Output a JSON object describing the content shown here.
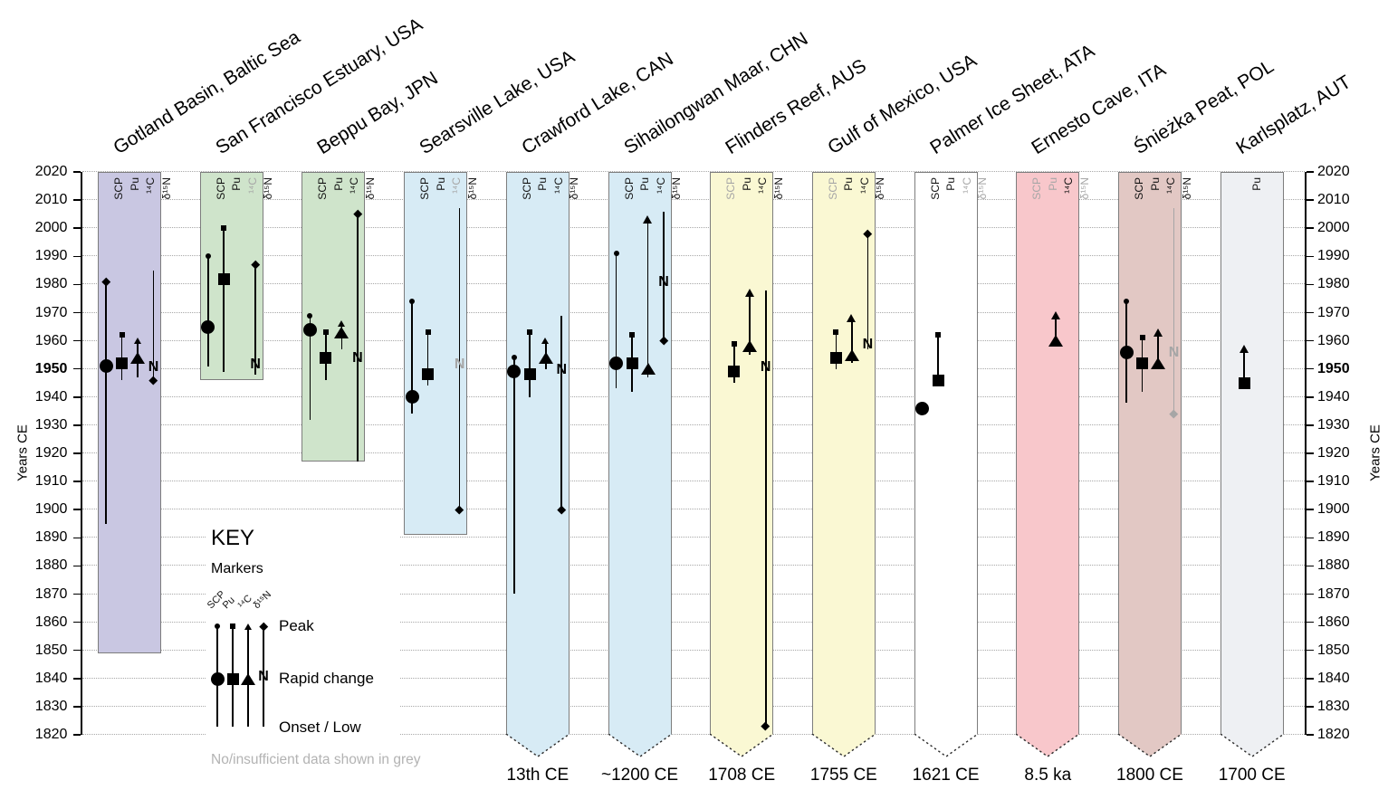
{
  "axis": {
    "left_label": "Years CE",
    "right_label": "Years CE",
    "year_top": 2020,
    "year_bottom": 1820,
    "tick_step": 10,
    "bold_year": 1950
  },
  "key": {
    "title": "KEY",
    "subtitle": "Markers",
    "proxies": [
      "SCP",
      "Pu",
      "¹⁴C",
      "δ¹⁵N"
    ],
    "peak_label": "Peak",
    "rapid_label": "Rapid change",
    "onset_label": "Onset / Low",
    "note": "No/insufficient data shown in grey"
  },
  "colors": {
    "lavender": "#c9c7e2",
    "green": "#cfe4cb",
    "blue": "#d7ebf5",
    "yellow": "#faf8d3",
    "white": "#ffffff",
    "pink": "#f8c7cb",
    "rose": "#e2c8c4",
    "lightgrey": "#eef0f3",
    "grey_data": "#a6a6a6",
    "band_border": "#7d7d7d",
    "gridline": "#a8a8a8"
  },
  "chart_data": {
    "type": "marker-timeline",
    "ylabel": "Years CE",
    "ylim": [
      1820,
      2020
    ],
    "grid": "dotted horizontal every 10 years",
    "proxy_order": [
      "SCP",
      "Pu",
      "¹⁴C",
      "δ¹⁵N"
    ],
    "marker_semantics": {
      "small": "Peak",
      "large": "Rapid change",
      "line_end": "Onset / Low",
      "grey": "No/insufficient data"
    },
    "sites": [
      {
        "name": "Gotland Basin, Baltic Sea",
        "color_key": "lavender",
        "pointed": false,
        "band_top": 2020,
        "band_bottom": 1849,
        "footer": null,
        "lanes": [
          {
            "label": "SCP",
            "label_grey": false,
            "line": [
              1981,
              1895
            ],
            "peak": {
              "year": 1981,
              "shape": "diamond"
            },
            "rapid": {
              "year": 1951,
              "shape": "circle"
            }
          },
          {
            "label": "Pu",
            "label_grey": false,
            "line": [
              1962,
              1946
            ],
            "peak": {
              "year": 1962,
              "shape": "square"
            },
            "rapid": {
              "year": 1952,
              "shape": "square"
            }
          },
          {
            "label": "¹⁴C",
            "label_grey": false,
            "line": [
              1960,
              1947
            ],
            "peak": {
              "year": 1960,
              "shape": "triangle"
            },
            "rapid": {
              "year": 1954,
              "shape": "triangle"
            }
          },
          {
            "label": "δ¹⁵N",
            "label_grey": false,
            "line": [
              1985,
              1946
            ],
            "peak": {
              "year": 1946,
              "shape": "diamond"
            },
            "rapid": {
              "year": 1950,
              "shape": "N"
            }
          }
        ]
      },
      {
        "name": "San Francisco Estuary, USA",
        "color_key": "green",
        "pointed": false,
        "band_top": 2020,
        "band_bottom": 1946,
        "footer": null,
        "lanes": [
          {
            "label": "SCP",
            "label_grey": false,
            "line": [
              1990,
              1951
            ],
            "peak": {
              "year": 1990,
              "shape": "circle"
            },
            "rapid": {
              "year": 1965,
              "shape": "circle"
            }
          },
          {
            "label": "Pu",
            "label_grey": false,
            "line": [
              2000,
              1949
            ],
            "peak": {
              "year": 2000,
              "shape": "square"
            },
            "rapid": {
              "year": 1982,
              "shape": "square"
            }
          },
          {
            "label": "¹⁴C",
            "label_grey": true,
            "line": null,
            "peak": null,
            "rapid": null
          },
          {
            "label": "δ¹⁵N",
            "label_grey": false,
            "line": [
              1987,
              1948
            ],
            "peak": {
              "year": 1987,
              "shape": "diamond"
            },
            "rapid": {
              "year": 1951,
              "shape": "N"
            }
          }
        ]
      },
      {
        "name": "Beppu Bay, JPN",
        "color_key": "green",
        "pointed": false,
        "band_top": 2020,
        "band_bottom": 1917,
        "footer": null,
        "lanes": [
          {
            "label": "SCP",
            "label_grey": false,
            "line": [
              1969,
              1932
            ],
            "peak": {
              "year": 1969,
              "shape": "circle"
            },
            "rapid": {
              "year": 1964,
              "shape": "circle"
            }
          },
          {
            "label": "Pu",
            "label_grey": false,
            "line": [
              1963,
              1946
            ],
            "peak": {
              "year": 1963,
              "shape": "square"
            },
            "rapid": {
              "year": 1954,
              "shape": "square"
            }
          },
          {
            "label": "¹⁴C",
            "label_grey": false,
            "line": [
              1966,
              1957
            ],
            "peak": {
              "year": 1966,
              "shape": "triangle"
            },
            "rapid": {
              "year": 1963,
              "shape": "triangle"
            }
          },
          {
            "label": "δ¹⁵N",
            "label_grey": false,
            "line": [
              2005,
              1917
            ],
            "peak": {
              "year": 2005,
              "shape": "diamond"
            },
            "rapid": {
              "year": 1953,
              "shape": "N"
            }
          }
        ]
      },
      {
        "name": "Searsville Lake, USA",
        "color_key": "blue",
        "pointed": false,
        "band_top": 2020,
        "band_bottom": 1891,
        "footer": null,
        "lanes": [
          {
            "label": "SCP",
            "label_grey": false,
            "line": [
              1974,
              1934
            ],
            "peak": {
              "year": 1974,
              "shape": "circle"
            },
            "rapid": {
              "year": 1940,
              "shape": "circle"
            }
          },
          {
            "label": "Pu",
            "label_grey": false,
            "line": [
              1963,
              1944
            ],
            "peak": {
              "year": 1963,
              "shape": "square"
            },
            "rapid": {
              "year": 1948,
              "shape": "square"
            }
          },
          {
            "label": "¹⁴C",
            "label_grey": true,
            "line": null,
            "peak": null,
            "rapid": null
          },
          {
            "label": "δ¹⁵N",
            "label_grey": false,
            "line": [
              2007,
              1900
            ],
            "peak": {
              "year": 1900,
              "shape": "diamond"
            },
            "rapid": {
              "year": 1951,
              "shape": "N",
              "grey": true
            }
          }
        ]
      },
      {
        "name": "Crawford Lake, CAN",
        "color_key": "blue",
        "pointed": true,
        "band_top": 2020,
        "band_bottom": 1820,
        "footer": "13th CE",
        "lanes": [
          {
            "label": "SCP",
            "label_grey": false,
            "line": [
              1954,
              1870
            ],
            "peak": {
              "year": 1954,
              "shape": "circle"
            },
            "rapid": {
              "year": 1949,
              "shape": "circle"
            }
          },
          {
            "label": "Pu",
            "label_grey": false,
            "line": [
              1963,
              1940
            ],
            "peak": {
              "year": 1963,
              "shape": "square"
            },
            "rapid": {
              "year": 1948,
              "shape": "square"
            }
          },
          {
            "label": "¹⁴C",
            "label_grey": false,
            "line": [
              1960,
              1950
            ],
            "peak": {
              "year": 1960,
              "shape": "triangle"
            },
            "rapid": {
              "year": 1954,
              "shape": "triangle"
            }
          },
          {
            "label": "δ¹⁵N",
            "label_grey": false,
            "line": [
              1969,
              1900
            ],
            "peak": {
              "year": 1900,
              "shape": "diamond"
            },
            "rapid": {
              "year": 1949,
              "shape": "N"
            }
          }
        ]
      },
      {
        "name": "Sihailongwan Maar, CHN",
        "color_key": "blue",
        "pointed": true,
        "band_top": 2020,
        "band_bottom": 1820,
        "footer": "~1200 CE",
        "lanes": [
          {
            "label": "SCP",
            "label_grey": false,
            "line": [
              1991,
              1943
            ],
            "peak": {
              "year": 1991,
              "shape": "circle"
            },
            "rapid": {
              "year": 1952,
              "shape": "circle"
            }
          },
          {
            "label": "Pu",
            "label_grey": false,
            "line": [
              1962,
              1942
            ],
            "peak": {
              "year": 1962,
              "shape": "square"
            },
            "rapid": {
              "year": 1952,
              "shape": "square"
            }
          },
          {
            "label": "¹⁴C",
            "label_grey": false,
            "line": [
              2003,
              1947
            ],
            "peak": {
              "year": 2003,
              "shape": "arrow"
            },
            "rapid": {
              "year": 1950,
              "shape": "triangle"
            }
          },
          {
            "label": "δ¹⁵N",
            "label_grey": false,
            "line": [
              2006,
              1960
            ],
            "peak": {
              "year": 1960,
              "shape": "diamond"
            },
            "rapid": {
              "year": 1980,
              "shape": "N"
            }
          }
        ]
      },
      {
        "name": "Flinders Reef, AUS",
        "color_key": "yellow",
        "pointed": true,
        "band_top": 2020,
        "band_bottom": 1820,
        "footer": "1708 CE",
        "lanes": [
          {
            "label": "SCP",
            "label_grey": true,
            "line": null,
            "peak": null,
            "rapid": null
          },
          {
            "label": "Pu",
            "label_grey": false,
            "line": [
              1959,
              1945
            ],
            "peak": {
              "year": 1959,
              "shape": "square"
            },
            "rapid": {
              "year": 1949,
              "shape": "square"
            }
          },
          {
            "label": "¹⁴C",
            "label_grey": false,
            "line": [
              1977,
              1955
            ],
            "peak": {
              "year": 1977,
              "shape": "arrow"
            },
            "rapid": {
              "year": 1958,
              "shape": "triangle"
            }
          },
          {
            "label": "δ¹⁵N",
            "label_grey": false,
            "line": [
              1978,
              1823
            ],
            "peak": {
              "year": 1823,
              "shape": "diamond"
            },
            "rapid": {
              "year": 1950,
              "shape": "N"
            }
          }
        ]
      },
      {
        "name": "Gulf of Mexico, USA",
        "color_key": "yellow",
        "pointed": true,
        "band_top": 2020,
        "band_bottom": 1820,
        "footer": "1755 CE",
        "lanes": [
          {
            "label": "SCP",
            "label_grey": true,
            "line": null,
            "peak": null,
            "rapid": null
          },
          {
            "label": "Pu",
            "label_grey": false,
            "line": [
              1963,
              1950
            ],
            "peak": {
              "year": 1963,
              "shape": "square"
            },
            "rapid": {
              "year": 1954,
              "shape": "square"
            }
          },
          {
            "label": "¹⁴C",
            "label_grey": false,
            "line": [
              1968,
              1952
            ],
            "peak": {
              "year": 1968,
              "shape": "arrow"
            },
            "rapid": {
              "year": 1955,
              "shape": "triangle"
            }
          },
          {
            "label": "δ¹⁵N",
            "label_grey": false,
            "line": [
              1998,
              1957
            ],
            "peak": {
              "year": 1998,
              "shape": "diamond"
            },
            "rapid": {
              "year": 1958,
              "shape": "N"
            }
          }
        ]
      },
      {
        "name": "Palmer Ice Sheet, ATA",
        "color_key": "white",
        "pointed": true,
        "band_top": 2020,
        "band_bottom": 1820,
        "footer": "1621 CE",
        "lanes": [
          {
            "label": "SCP",
            "label_grey": false,
            "line": null,
            "peak": null,
            "rapid": {
              "year": 1936,
              "shape": "circle"
            }
          },
          {
            "label": "Pu",
            "label_grey": false,
            "line": [
              1962,
              1946
            ],
            "peak": {
              "year": 1962,
              "shape": "square"
            },
            "rapid": {
              "year": 1946,
              "shape": "square"
            }
          },
          {
            "label": "¹⁴C",
            "label_grey": true,
            "line": null,
            "peak": null,
            "rapid": null
          },
          {
            "label": "δ¹⁵N",
            "label_grey": true,
            "line": null,
            "peak": null,
            "rapid": null
          }
        ]
      },
      {
        "name": "Ernesto Cave, ITA",
        "color_key": "pink",
        "pointed": true,
        "band_top": 2020,
        "band_bottom": 1820,
        "footer": "8.5 ka",
        "lanes": [
          {
            "label": "SCP",
            "label_grey": true,
            "line": null,
            "peak": null,
            "rapid": null
          },
          {
            "label": "Pu",
            "label_grey": true,
            "line": null,
            "peak": null,
            "rapid": null
          },
          {
            "label": "¹⁴C",
            "label_grey": false,
            "line": [
              1969,
              1960
            ],
            "peak": {
              "year": 1969,
              "shape": "arrow"
            },
            "rapid": {
              "year": 1960,
              "shape": "triangle"
            }
          },
          {
            "label": "δ¹⁵N",
            "label_grey": true,
            "line": null,
            "peak": null,
            "rapid": null
          }
        ]
      },
      {
        "name": "Śnieżka Peat, POL",
        "color_key": "rose",
        "pointed": true,
        "band_top": 2020,
        "band_bottom": 1820,
        "footer": "1800 CE",
        "lanes": [
          {
            "label": "SCP",
            "label_grey": false,
            "line": [
              1974,
              1938
            ],
            "peak": {
              "year": 1974,
              "shape": "circle"
            },
            "rapid": {
              "year": 1956,
              "shape": "circle"
            }
          },
          {
            "label": "Pu",
            "label_grey": false,
            "line": [
              1961,
              1942
            ],
            "peak": {
              "year": 1961,
              "shape": "square"
            },
            "rapid": {
              "year": 1952,
              "shape": "square"
            }
          },
          {
            "label": "¹⁴C",
            "label_grey": false,
            "line": [
              1963,
              1950
            ],
            "peak": {
              "year": 1963,
              "shape": "arrow"
            },
            "rapid": {
              "year": 1952,
              "shape": "triangle"
            }
          },
          {
            "label": "δ¹⁵N",
            "label_grey": false,
            "line": [
              2007,
              1934
            ],
            "line_grey": true,
            "peak": {
              "year": 1934,
              "shape": "diamond",
              "grey": true
            },
            "rapid": {
              "year": 1955,
              "shape": "N",
              "grey": true
            }
          }
        ]
      },
      {
        "name": "Karlsplatz, AUT",
        "color_key": "lightgrey",
        "pointed": true,
        "band_top": 2020,
        "band_bottom": 1820,
        "footer": "1700 CE",
        "lanes": [
          {
            "label": null
          },
          {
            "label": "Pu",
            "label_grey": false,
            "line": [
              1957,
              1945
            ],
            "peak": {
              "year": 1957,
              "shape": "arrow"
            },
            "rapid": {
              "year": 1945,
              "shape": "square"
            }
          },
          {
            "label": null
          },
          {
            "label": null
          }
        ]
      }
    ]
  }
}
